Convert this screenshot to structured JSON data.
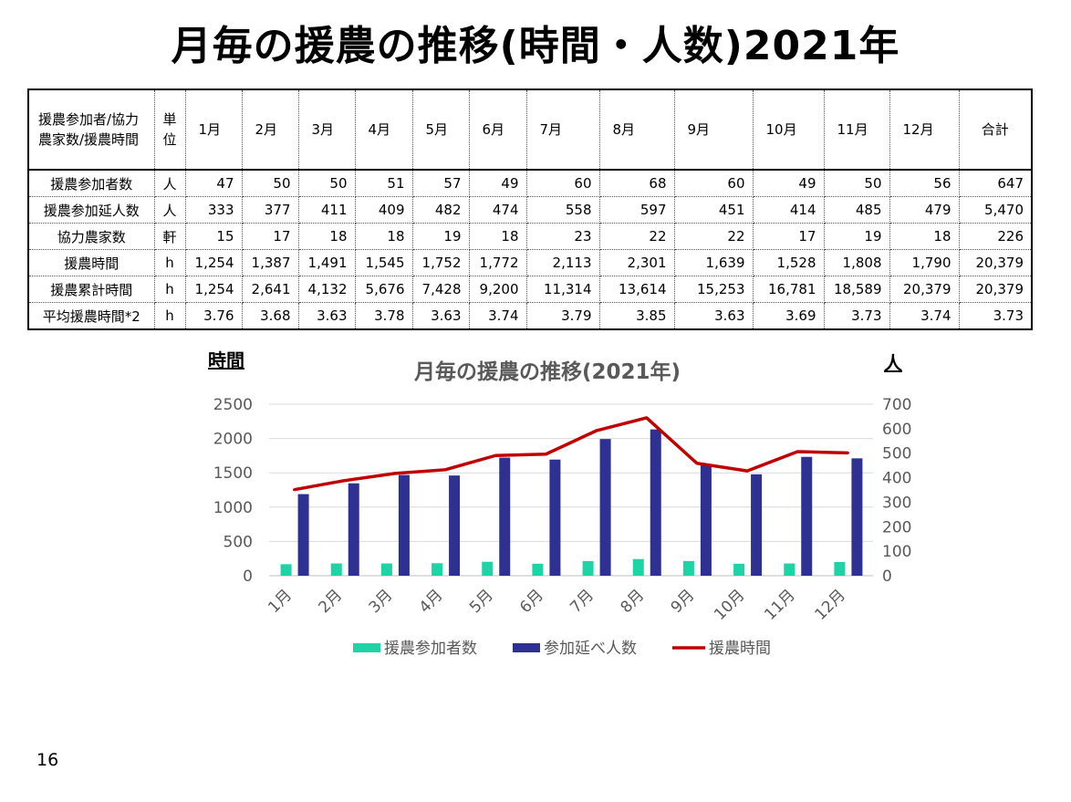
{
  "slide": {
    "title": "月毎の援農の推移(時間・人数)2021年",
    "page_number": "16"
  },
  "table": {
    "header": [
      "援農参加者/協力農家数/援農時間",
      "単位",
      "1月",
      "2月",
      "3月",
      "4月",
      "5月",
      "6月",
      "7月",
      "8月",
      "9月",
      "10月",
      "11月",
      "12月",
      "合計"
    ],
    "rows": [
      {
        "label": "援農参加者数",
        "unit": "人",
        "values": [
          "47",
          "50",
          "50",
          "51",
          "57",
          "49",
          "60",
          "68",
          "60",
          "49",
          "50",
          "56",
          "647"
        ]
      },
      {
        "label": "援農参加延人数",
        "unit": "人",
        "values": [
          "333",
          "377",
          "411",
          "409",
          "482",
          "474",
          "558",
          "597",
          "451",
          "414",
          "485",
          "479",
          "5,470"
        ]
      },
      {
        "label": "協力農家数",
        "unit": "軒",
        "values": [
          "15",
          "17",
          "18",
          "18",
          "19",
          "18",
          "23",
          "22",
          "22",
          "17",
          "19",
          "18",
          "226"
        ]
      },
      {
        "label": "援農時間",
        "unit": "h",
        "values": [
          "1,254",
          "1,387",
          "1,491",
          "1,545",
          "1,752",
          "1,772",
          "2,113",
          "2,301",
          "1,639",
          "1,528",
          "1,808",
          "1,790",
          "20,379"
        ]
      },
      {
        "label": "援農累計時間",
        "unit": "h",
        "values": [
          "1,254",
          "2,641",
          "4,132",
          "5,676",
          "7,428",
          "9,200",
          "11,314",
          "13,614",
          "15,253",
          "16,781",
          "18,589",
          "20,379",
          "20,379"
        ]
      },
      {
        "label": "平均援農時間*2",
        "unit": "h",
        "values": [
          "3.76",
          "3.68",
          "3.63",
          "3.78",
          "3.63",
          "3.74",
          "3.79",
          "3.85",
          "3.63",
          "3.69",
          "3.73",
          "3.74",
          "3.73"
        ]
      }
    ]
  },
  "chart_data": {
    "type": "bar",
    "title": "月毎の援農の推移(2021年)",
    "ylabel": "時間",
    "y2label": "人",
    "categories": [
      "1月",
      "2月",
      "3月",
      "4月",
      "5月",
      "6月",
      "7月",
      "8月",
      "9月",
      "10月",
      "11月",
      "12月"
    ],
    "ylim": [
      0,
      2500
    ],
    "y_ticks": [
      "0",
      "500",
      "1000",
      "1500",
      "2000",
      "2500"
    ],
    "y2lim": [
      0,
      700
    ],
    "y2_ticks": [
      "0",
      "100",
      "200",
      "300",
      "400",
      "500",
      "600",
      "700"
    ],
    "legend_position": "bottom",
    "series": [
      {
        "name": "援農参加者数",
        "type": "bar",
        "axis": "right",
        "color": "#1ed3a6",
        "values": [
          47,
          50,
          50,
          51,
          57,
          49,
          60,
          68,
          60,
          49,
          50,
          56
        ]
      },
      {
        "name": "参加延べ人数",
        "type": "bar",
        "axis": "right",
        "color": "#2e3192",
        "values": [
          333,
          377,
          411,
          409,
          482,
          474,
          558,
          597,
          451,
          414,
          485,
          479
        ]
      },
      {
        "name": "援農時間",
        "type": "line",
        "axis": "left",
        "color": "#c00000",
        "values": [
          1254,
          1387,
          1491,
          1545,
          1752,
          1772,
          2113,
          2301,
          1639,
          1528,
          1808,
          1790
        ]
      }
    ]
  }
}
